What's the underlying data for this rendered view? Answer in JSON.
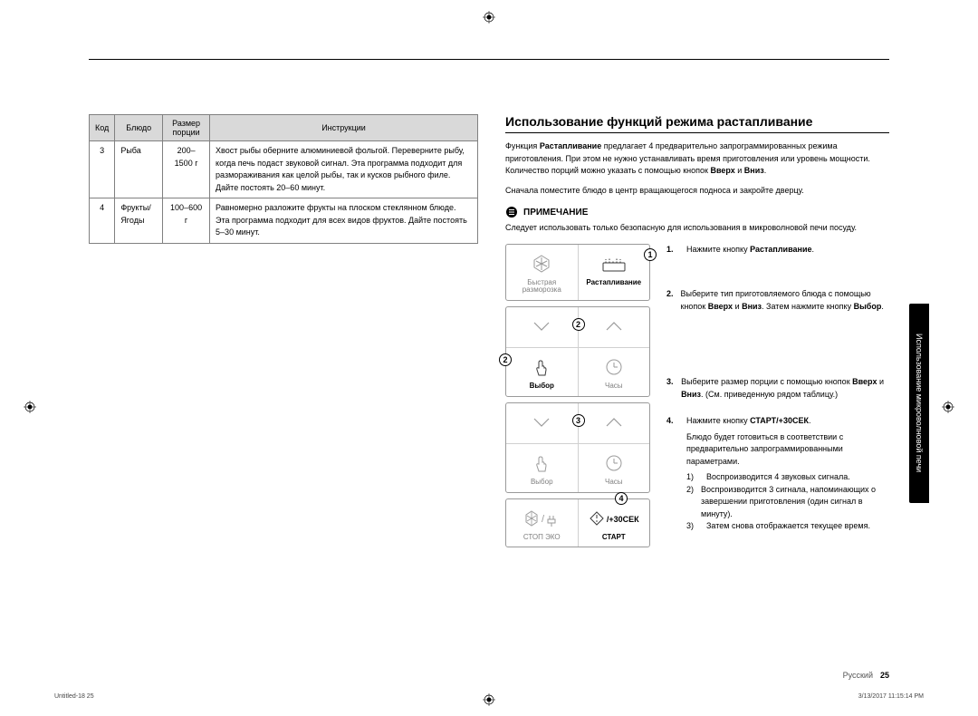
{
  "colors": {
    "table_header_bg": "#d9d9d9",
    "table_border": "#808080",
    "panel_border": "#9a9a9a",
    "panel_text": "#808080",
    "text": "#000000",
    "background": "#ffffff",
    "side_tab_bg": "#000000",
    "side_tab_text": "#ffffff"
  },
  "typography": {
    "body_fontsize_pt": 9,
    "heading_fontsize_pt": 14,
    "panel_label_fontsize_pt": 8
  },
  "table": {
    "headers": [
      "Код",
      "Блюдо",
      "Размер порции",
      "Инструкции"
    ],
    "rows": [
      {
        "code": "3",
        "dish": "Рыба",
        "portion": "200–1500 г",
        "instr": "Хвост рыбы оберните алюминиевой фольгой. Переверните рыбу, когда печь подаст звуковой сигнал. Эта программа подходит для размораживания как целой рыбы, так и кусков рыбного филе. Дайте постоять 20–60 минут."
      },
      {
        "code": "4",
        "dish": "Фрукты/Ягоды",
        "portion": "100–600 г",
        "instr": "Равномерно разложите фрукты на плоском стеклянном блюде. Эта программа подходит для всех видов фруктов. Дайте постоять 5–30 минут."
      }
    ]
  },
  "section_title": "Использование функций режима растапливание",
  "intro_html": "Функция <b>Растапливание</b> предлагает 4 предварительно запрограммированных режима приготовления. При этом не нужно устанавливать время приготовления или уровень мощности. Количество порций можно указать с помощью кнопок <b>Вверх</b> и <b>Вниз</b>.",
  "intro2": "Сначала поместите блюдо в центр вращающегося подноса и закройте дверцу.",
  "note_label": "ПРИМЕЧАНИЕ",
  "note_text": "Следует использовать только безопасную для использования в микроволновой печи посуду.",
  "steps": [
    {
      "n": "1.",
      "html": "Нажмите кнопку <b>Растапливание</b>."
    },
    {
      "n": "2.",
      "html": "Выберите тип приготовляемого блюда с помощью кнопок <b>Вверх</b> и <b>Вниз</b>. Затем нажмите кнопку <b>Выбор</b>."
    },
    {
      "n": "3.",
      "html": "Выберите размер порции с помощью кнопок <b>Вверх</b> и <b>Вниз</b>. (См. приведенную рядом таблицу.)"
    },
    {
      "n": "4.",
      "html": "Нажмите кнопку <b>СТАРТ/+30СЕК</b>.",
      "tail": "Блюдо будет готовиться в соответствии с предварительно запрограммированными параметрами.",
      "sub": [
        {
          "sn": "1)",
          "t": "Воспроизводится 4 звуковых сигнала."
        },
        {
          "sn": "2)",
          "t": "Воспроизводится 3 сигнала, напоминающих о завершении приготовления (один сигнал в минуту)."
        },
        {
          "sn": "3)",
          "t": "Затем снова отображается текущее время."
        }
      ]
    }
  ],
  "panel": {
    "box1": {
      "left": {
        "label": "Быстрая разморозка",
        "icon": "snowflake"
      },
      "right": {
        "label": "Растапливание",
        "icon": "soften",
        "active": true,
        "marker": "1"
      }
    },
    "box2": {
      "arrows_marker": "2",
      "left": {
        "label": "Выбор",
        "icon": "hand",
        "active": true,
        "marker": "2"
      },
      "right": {
        "label": "Часы",
        "icon": "clock"
      }
    },
    "box3": {
      "arrows_marker": "3",
      "left": {
        "label": "Выбор",
        "icon": "hand"
      },
      "right": {
        "label": "Часы",
        "icon": "clock"
      }
    },
    "box4": {
      "left": {
        "label": "СТОП  ЭКО",
        "icon": "stop-eco"
      },
      "right": {
        "label": "СТАРТ",
        "icon": "start-30",
        "right_text": "/+30СЕК",
        "active": true,
        "marker": "4"
      }
    }
  },
  "side_tab": "Использование микроволновой печи",
  "footer": {
    "lang": "Русский",
    "page": "25"
  },
  "tiny_footer": {
    "left": "Untitled-18   25",
    "right": "3/13/2017   11:15:14 PM"
  }
}
